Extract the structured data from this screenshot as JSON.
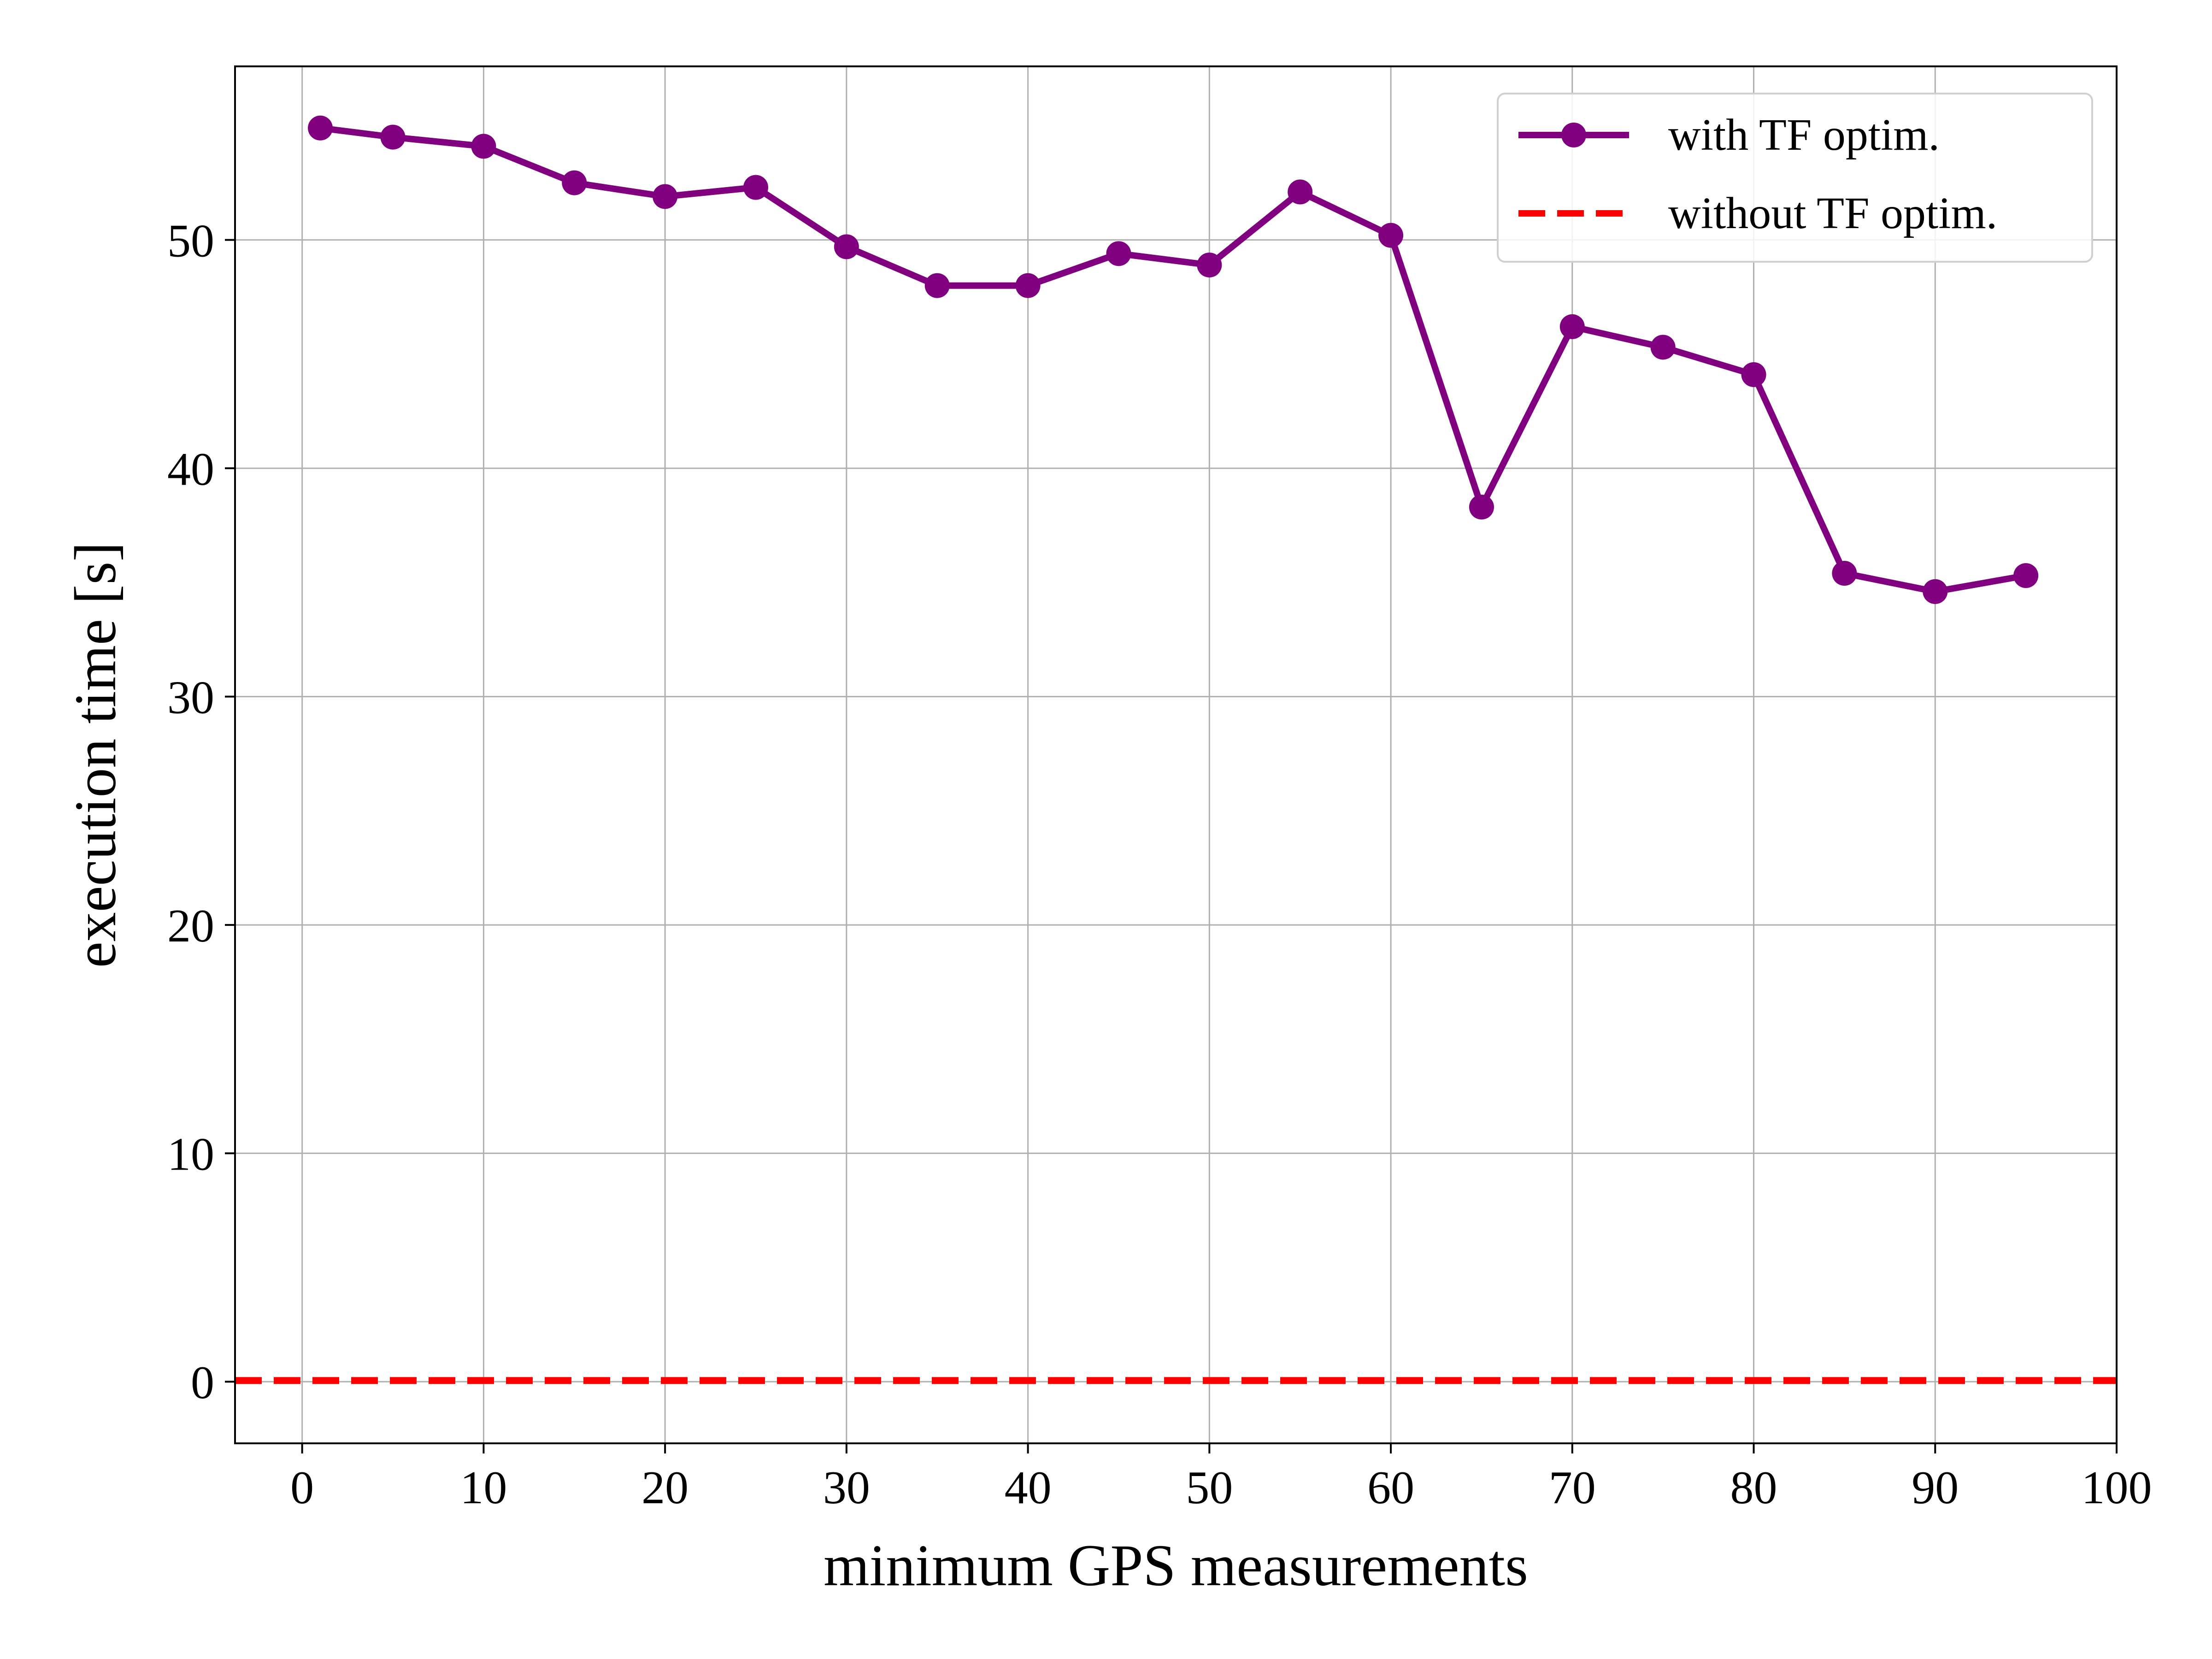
{
  "chart_data": {
    "type": "line",
    "title": "",
    "xlabel": "minimum GPS measurements",
    "ylabel": "execution time [s]",
    "xlim": [
      -3.7,
      100
    ],
    "ylim": [
      -2.7,
      57.6
    ],
    "xticks": [
      0,
      10,
      20,
      30,
      40,
      50,
      60,
      70,
      80,
      90,
      100
    ],
    "yticks": [
      0,
      10,
      20,
      30,
      40,
      50
    ],
    "grid": true,
    "legend_position": "top-right",
    "series": [
      {
        "name": "with TF optim.",
        "color": "#800080",
        "style": "solid-with-markers",
        "x": [
          1,
          5,
          10,
          15,
          20,
          25,
          30,
          35,
          40,
          45,
          50,
          55,
          60,
          65,
          70,
          75,
          80,
          85,
          90,
          95
        ],
        "values": [
          54.9,
          54.5,
          54.1,
          52.5,
          51.9,
          52.3,
          49.7,
          48.0,
          48.0,
          49.4,
          48.9,
          52.1,
          50.2,
          38.3,
          46.2,
          45.3,
          44.1,
          35.4,
          34.6,
          35.3
        ]
      },
      {
        "name": "without TF optim.",
        "color": "#ff0000",
        "style": "dashed",
        "x": [
          -3.7,
          100
        ],
        "values": [
          0.05,
          0.05
        ]
      }
    ]
  }
}
